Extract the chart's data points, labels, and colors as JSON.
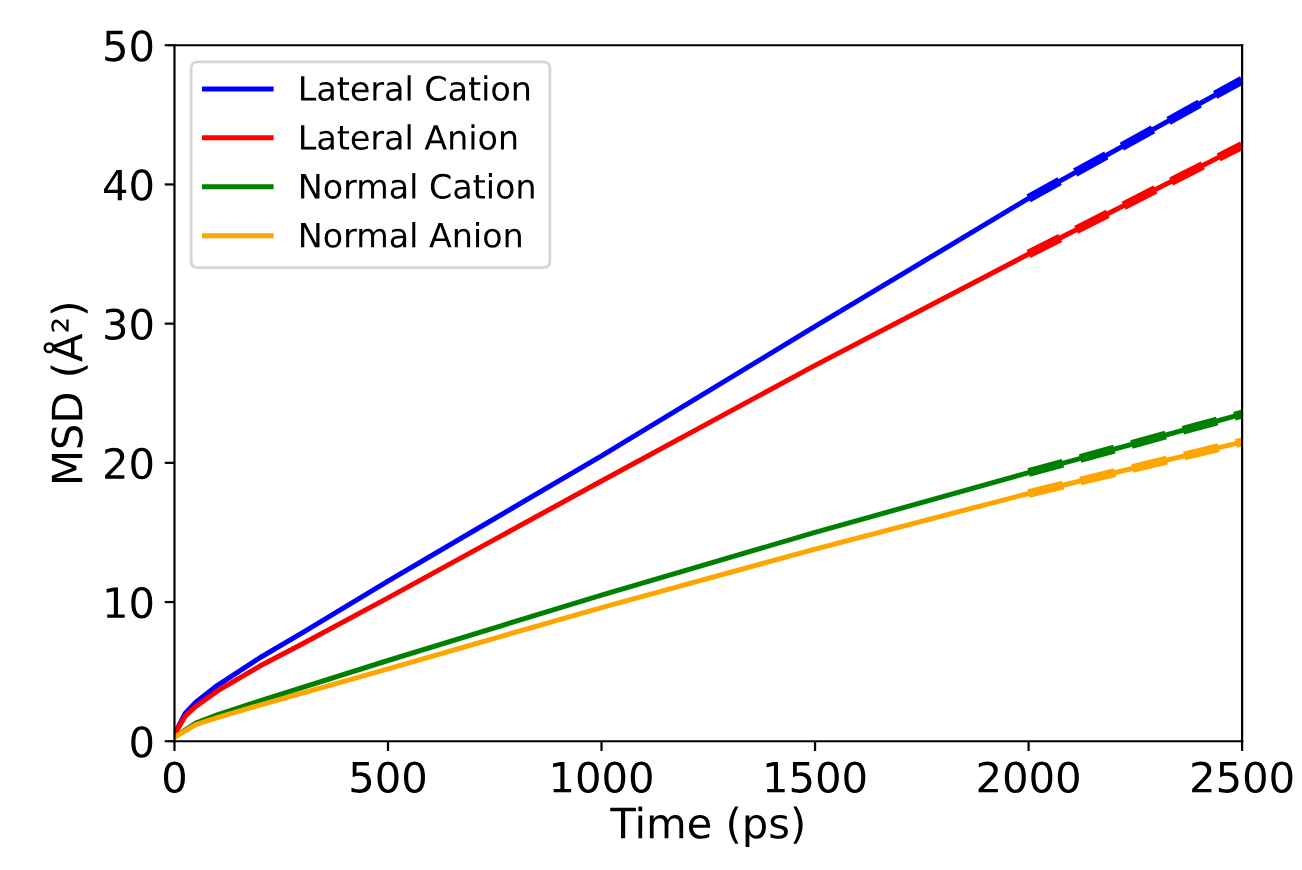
{
  "chart_data": {
    "type": "line",
    "xlabel": "Time (ps)",
    "ylabel": "MSD (Å²)",
    "xlim": [
      0,
      2500
    ],
    "ylim": [
      0,
      50
    ],
    "xticks": [
      0,
      500,
      1000,
      1500,
      2000,
      2500
    ],
    "yticks": [
      0,
      10,
      20,
      30,
      40,
      50
    ],
    "grid": false,
    "legend": "top left",
    "line_style": "solid",
    "marker": "none",
    "series": [
      {
        "name": "Lateral Cation",
        "color": "#0000ff",
        "x": [
          0,
          25,
          50,
          100,
          200,
          300,
          500,
          750,
          1000,
          1500,
          2000,
          2500
        ],
        "values": [
          0.5,
          2,
          2.8,
          4,
          6,
          7.8,
          11.5,
          16,
          20.5,
          29.8,
          39,
          47.5
        ]
      },
      {
        "name": "Lateral Anion",
        "color": "#ff0000",
        "x": [
          0,
          25,
          50,
          100,
          200,
          300,
          500,
          750,
          1000,
          1500,
          2000,
          2500
        ],
        "values": [
          0.5,
          1.8,
          2.5,
          3.6,
          5.4,
          7,
          10.3,
          14.5,
          18.7,
          27,
          35,
          42.8
        ]
      },
      {
        "name": "Normal Cation",
        "color": "#008000",
        "x": [
          0,
          50,
          100,
          200,
          500,
          1000,
          1500,
          2000,
          2500
        ],
        "values": [
          0.3,
          1.3,
          1.9,
          2.9,
          5.8,
          10.5,
          15,
          19.3,
          23.5
        ]
      },
      {
        "name": "Normal Anion",
        "color": "#ffa500",
        "x": [
          0,
          50,
          100,
          200,
          500,
          1000,
          1500,
          2000,
          2500
        ],
        "values": [
          0.3,
          1.2,
          1.7,
          2.6,
          5.2,
          9.6,
          13.8,
          17.8,
          21.5
        ]
      },
      {
        "color": "#0000ff",
        "line_style": "dashed",
        "x": [
          2000,
          2500
        ],
        "values": [
          39,
          47.5
        ]
      },
      {
        "color": "#ff0000",
        "line_style": "dashed",
        "x": [
          2000,
          2500
        ],
        "values": [
          35,
          42.8
        ]
      },
      {
        "color": "#008000",
        "line_style": "dashed",
        "x": [
          2000,
          2500
        ],
        "values": [
          19.3,
          23.5
        ]
      },
      {
        "color": "#ffa500",
        "line_style": "dashed",
        "x": [
          2000,
          2500
        ],
        "values": [
          17.8,
          21.5
        ]
      }
    ]
  }
}
